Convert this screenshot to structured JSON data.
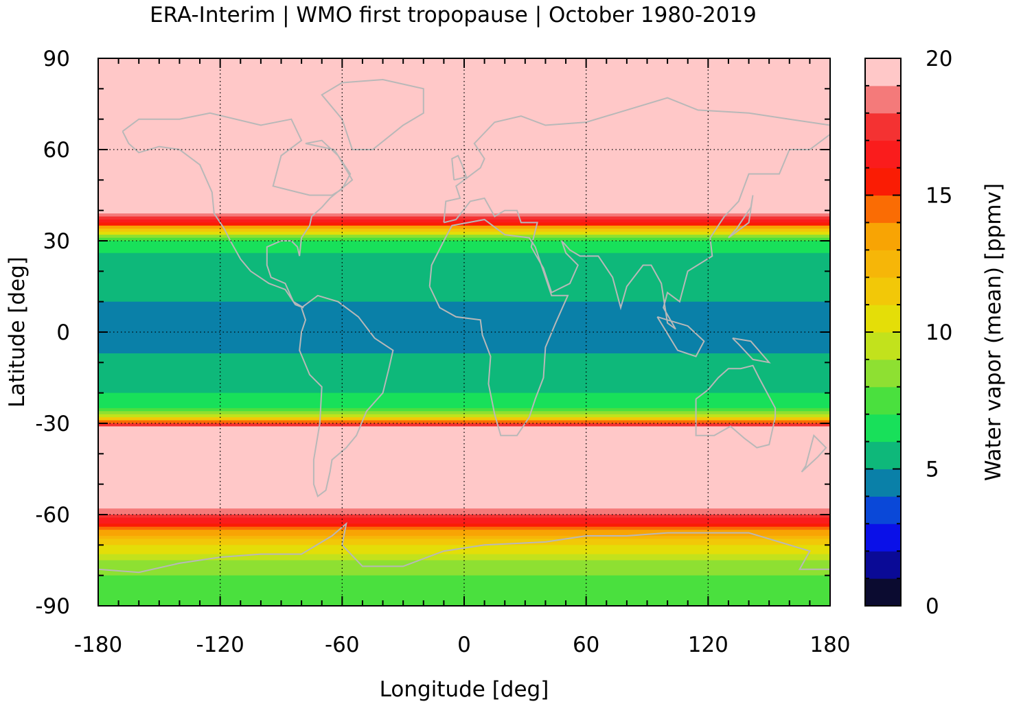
{
  "chart_data": {
    "type": "heatmap",
    "title": "ERA-Interim | WMO first tropopause | October 1980-2019",
    "xlabel": "Longitude [deg]",
    "ylabel": "Latitude [deg]",
    "colorbar_label": "Water vapor (mean) [ppmv]",
    "xlim": [
      -180,
      180
    ],
    "ylim": [
      -90,
      90
    ],
    "xticks": [
      -180,
      -120,
      -60,
      0,
      60,
      120,
      180
    ],
    "xtick_labels": [
      "-180",
      "-120",
      "-60",
      "0",
      "60",
      "120",
      "180"
    ],
    "yticks": [
      -90,
      -60,
      -30,
      0,
      30,
      60,
      90
    ],
    "ytick_labels": [
      "-90",
      "-60",
      "-30",
      "0",
      "30",
      "60",
      "90"
    ],
    "clim": [
      0,
      20
    ],
    "cbar_ticks": [
      0,
      5,
      10,
      15,
      20
    ],
    "cbar_tick_labels": [
      "0",
      "5",
      "10",
      "15",
      "20"
    ],
    "grid": true,
    "levels": [
      0,
      1,
      2,
      3,
      4,
      5,
      6,
      7,
      8,
      9,
      10,
      11,
      12,
      13,
      14,
      15,
      16,
      17,
      18,
      19,
      20
    ],
    "level_colors": [
      "#0b0b30",
      "#0a0a96",
      "#0a10e8",
      "#0a48d8",
      "#0a80a8",
      "#0eb87a",
      "#18e05a",
      "#4ae03e",
      "#8ee032",
      "#c2e21c",
      "#e4de08",
      "#f2c808",
      "#f6b608",
      "#f8a404",
      "#fa6c04",
      "#fa1c04",
      "#fa1c1c",
      "#f43232",
      "#f47a7a",
      "#ffc8c8"
    ],
    "zonal_profile_lat": [
      90,
      60,
      45,
      40,
      36,
      33,
      30,
      25,
      20,
      15,
      10,
      5,
      0,
      -5,
      -10,
      -15,
      -20,
      -25,
      -28,
      -30,
      -32,
      -40,
      -55,
      -60,
      -65,
      -70,
      -75,
      -80,
      -85,
      -90
    ],
    "zonal_profile_ppmv": [
      20,
      20,
      20,
      20,
      16.5,
      11,
      6.5,
      5.8,
      5.4,
      5.2,
      5.0,
      4.8,
      4.8,
      4.9,
      5.1,
      5.6,
      6.0,
      6.8,
      10,
      16,
      20,
      20,
      20,
      18,
      14,
      11,
      9,
      8,
      7.5,
      7.5
    ],
    "coastlines": "gray outline overlay"
  }
}
